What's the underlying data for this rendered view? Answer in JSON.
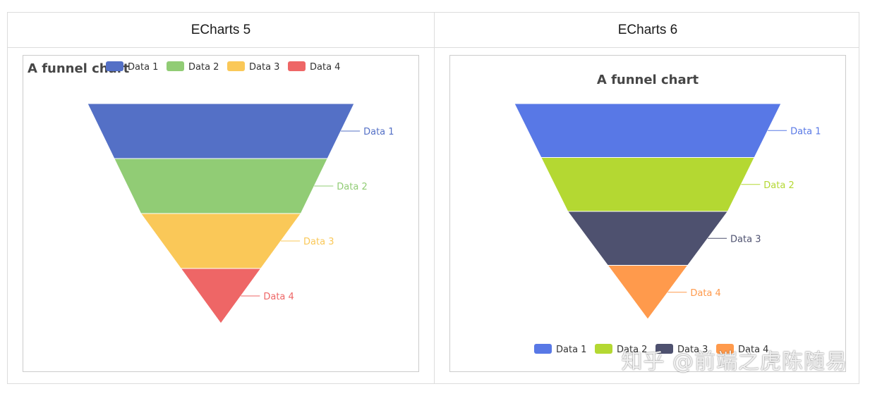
{
  "columns": [
    {
      "header": "ECharts 5"
    },
    {
      "header": "ECharts 6"
    }
  ],
  "watermark": "知乎 @前端之虎陈随易",
  "chart_data": [
    {
      "type": "funnel",
      "title": "A funnel chart",
      "legend_position": "top-center",
      "legend": [
        "Data 1",
        "Data 2",
        "Data 3",
        "Data 4"
      ],
      "categories": [
        "Data 1",
        "Data 2",
        "Data 3",
        "Data 4"
      ],
      "values": [
        100,
        80,
        60,
        30
      ],
      "colors": [
        "#5470c6",
        "#91cc75",
        "#fac858",
        "#ee6666"
      ]
    },
    {
      "type": "funnel",
      "title": "A funnel chart",
      "legend_position": "bottom-center",
      "legend": [
        "Data 1",
        "Data 2",
        "Data 3",
        "Data 4"
      ],
      "categories": [
        "Data 1",
        "Data 2",
        "Data 3",
        "Data 4"
      ],
      "values": [
        100,
        80,
        60,
        30
      ],
      "colors": [
        "#5878e6",
        "#b4d832",
        "#4e516f",
        "#ff9a4c"
      ]
    }
  ]
}
